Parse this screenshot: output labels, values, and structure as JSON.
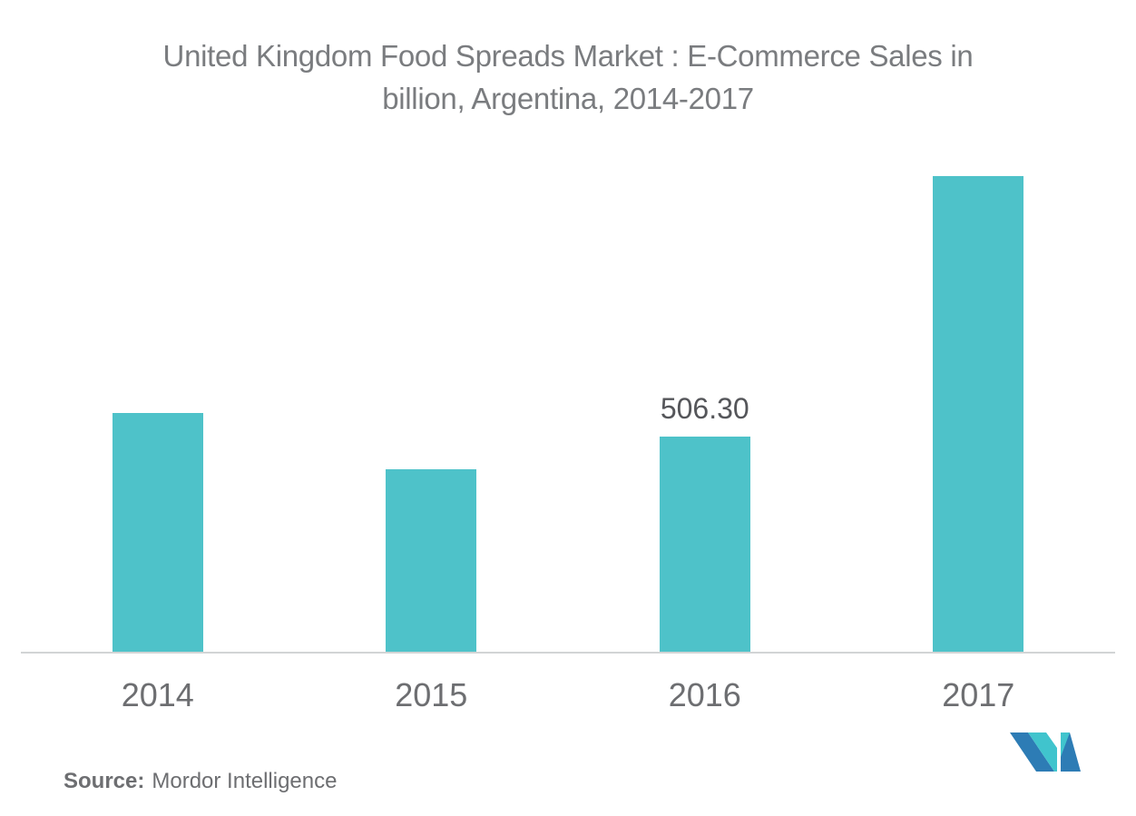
{
  "header": {
    "title_line1": "United Kingdom Food Spreads Market : E-Commerce Sales in",
    "title_line2": "billion, Argentina, 2014-2017"
  },
  "chart_data": {
    "type": "bar",
    "title": "United Kingdom Food Spreads Market : E-Commerce Sales in billion, Argentina, 2014-2017",
    "categories": [
      "2014",
      "2015",
      "2016",
      "2017"
    ],
    "values": [
      562,
      429,
      506.3,
      1119
    ],
    "data_labels": [
      "",
      "",
      "506.30",
      ""
    ],
    "xlabel": "",
    "ylabel": "",
    "ylim": [
      0,
      1200
    ],
    "grid": false,
    "legend": "none",
    "bar_color": "#4ec2c9"
  },
  "footer": {
    "source_label": "Source:",
    "source_value": "Mordor Intelligence"
  },
  "theme": {
    "background": "#ffffff",
    "title_color": "#7a7c7f",
    "tick_color": "#6d6e71",
    "data_label_color": "#55565a",
    "axis_line_color": "#d2d4d5"
  },
  "logo": {
    "name": "Mordor Intelligence",
    "colors": {
      "blue": "#2d7cb5",
      "teal": "#40c4cd"
    }
  }
}
